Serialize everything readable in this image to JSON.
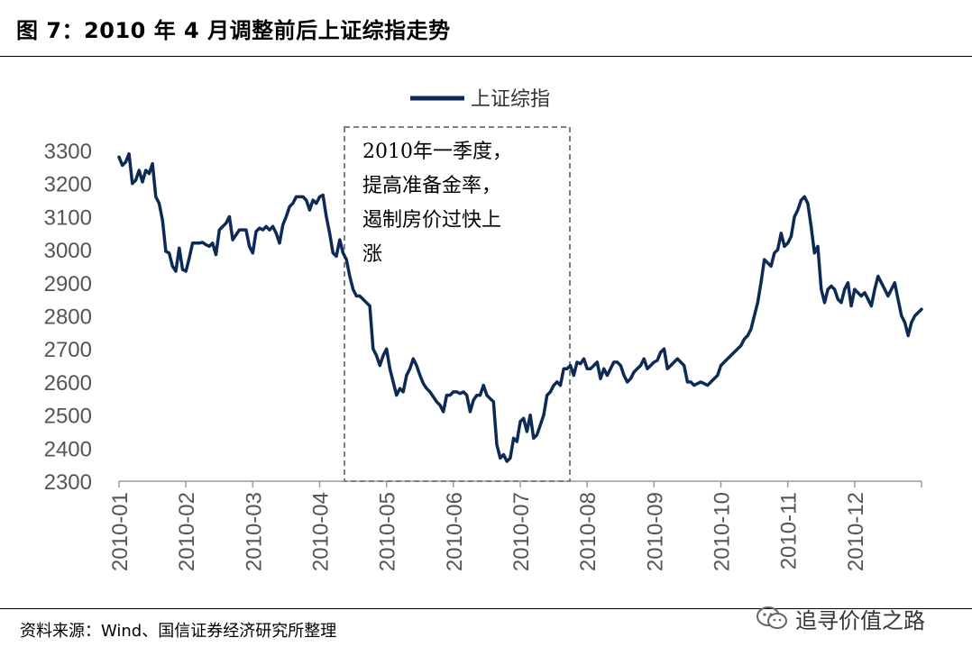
{
  "header": {
    "title": "图 7：2010 年 4 月调整前后上证综指走势"
  },
  "footer": {
    "source": "资料来源：Wind、国信证券经济研究所整理"
  },
  "watermark": {
    "text": "追寻价值之路",
    "icon": "wechat-icon"
  },
  "colors": {
    "line": "#0d2a56",
    "axis": "#9a9a9a",
    "box": "#7f7f7f"
  },
  "chart_data": {
    "type": "line",
    "title": "",
    "xlabel": "",
    "ylabel": "",
    "ylim": [
      2300,
      3300
    ],
    "yticks": [
      "3300",
      "3200",
      "3100",
      "3000",
      "2900",
      "2800",
      "2700",
      "2600",
      "2500",
      "2400",
      "2300"
    ],
    "xticks": [
      "2010-01",
      "2010-02",
      "2010-03",
      "2010-04",
      "2010-05",
      "2010-06",
      "2010-07",
      "2010-08",
      "2010-09",
      "2010-10",
      "2010-11",
      "2010-12"
    ],
    "legend": {
      "position": "top-center",
      "entries": [
        "上证综指"
      ]
    },
    "grid": false,
    "series": [
      {
        "name": "上证综指",
        "x": [
          0.0,
          0.05,
          0.1,
          0.15,
          0.2,
          0.25,
          0.3,
          0.35,
          0.4,
          0.45,
          0.5,
          0.55,
          0.6,
          0.65,
          0.7,
          0.75,
          0.8,
          0.85,
          0.9,
          0.95,
          1.0,
          1.05,
          1.1,
          1.15,
          1.2,
          1.25,
          1.3,
          1.35,
          1.4,
          1.45,
          1.5,
          1.55,
          1.6,
          1.65,
          1.7,
          1.75,
          1.8,
          1.85,
          1.9,
          1.95,
          2.0,
          2.05,
          2.1,
          2.15,
          2.2,
          2.25,
          2.3,
          2.35,
          2.4,
          2.45,
          2.5,
          2.55,
          2.6,
          2.65,
          2.7,
          2.75,
          2.8,
          2.85,
          2.9,
          2.95,
          3.0,
          3.05,
          3.1,
          3.15,
          3.2,
          3.25,
          3.3,
          3.35,
          3.4,
          3.45,
          3.5,
          3.55,
          3.6,
          3.65,
          3.7,
          3.75,
          3.8,
          3.85,
          3.9,
          3.95,
          4.0,
          4.05,
          4.1,
          4.15,
          4.2,
          4.25,
          4.3,
          4.35,
          4.4,
          4.45,
          4.5,
          4.55,
          4.6,
          4.65,
          4.7,
          4.75,
          4.8,
          4.85,
          4.9,
          4.95,
          5.0,
          5.05,
          5.1,
          5.15,
          5.2,
          5.25,
          5.3,
          5.35,
          5.4,
          5.45,
          5.5,
          5.55,
          5.6,
          5.65,
          5.7,
          5.75,
          5.8,
          5.85,
          5.9,
          5.95,
          6.0,
          6.05,
          6.1,
          6.15,
          6.2,
          6.25,
          6.3,
          6.35,
          6.4,
          6.45,
          6.5,
          6.55,
          6.6,
          6.65,
          6.7,
          6.75,
          6.8,
          6.85,
          6.9,
          6.95,
          7.0,
          7.05,
          7.1,
          7.15,
          7.2,
          7.25,
          7.3,
          7.35,
          7.4,
          7.45,
          7.5,
          7.55,
          7.6,
          7.65,
          7.7,
          7.75,
          7.8,
          7.85,
          7.9,
          7.95,
          8.0,
          8.05,
          8.1,
          8.15,
          8.2,
          8.25,
          8.3,
          8.35,
          8.4,
          8.45,
          8.5,
          8.55,
          8.6,
          8.65,
          8.7,
          8.75,
          8.8,
          8.85,
          8.9,
          8.95,
          9.0,
          9.05,
          9.1,
          9.15,
          9.2,
          9.25,
          9.3,
          9.35,
          9.4,
          9.45,
          9.5,
          9.55,
          9.6,
          9.65,
          9.7,
          9.75,
          9.8,
          9.85,
          9.9,
          9.95,
          10.0,
          10.05,
          10.1,
          10.15,
          10.2,
          10.25,
          10.3,
          10.35,
          10.4,
          10.45,
          10.5,
          10.55,
          10.6,
          10.65,
          10.7,
          10.75,
          10.8,
          10.85,
          10.9,
          10.95,
          11.0,
          11.05,
          11.1,
          11.15,
          11.2,
          11.25,
          11.3,
          11.35,
          11.4,
          11.45,
          11.5,
          11.55,
          11.6,
          11.65,
          11.7,
          11.75,
          11.8,
          11.85,
          11.9,
          11.95,
          12.0
        ],
        "values": [
          3280,
          3255,
          3265,
          3290,
          3200,
          3210,
          3240,
          3205,
          3240,
          3230,
          3260,
          3160,
          3140,
          3090,
          2995,
          2990,
          2950,
          2935,
          3005,
          2940,
          2935,
          2975,
          3020,
          3020,
          3020,
          3022,
          3015,
          3010,
          3020,
          2985,
          3060,
          3070,
          3080,
          3100,
          3030,
          3045,
          3060,
          3060,
          3060,
          3010,
          2990,
          3055,
          3065,
          3060,
          3070,
          3060,
          3070,
          3050,
          3020,
          3075,
          3100,
          3130,
          3140,
          3160,
          3160,
          3160,
          3150,
          3120,
          3150,
          3140,
          3160,
          3165,
          3100,
          3050,
          2990,
          2980,
          3030,
          2990,
          2970,
          2920,
          2880,
          2860,
          2860,
          2850,
          2840,
          2830,
          2700,
          2680,
          2650,
          2680,
          2700,
          2640,
          2600,
          2560,
          2580,
          2570,
          2620,
          2640,
          2670,
          2650,
          2620,
          2595,
          2580,
          2570,
          2555,
          2540,
          2530,
          2510,
          2560,
          2560,
          2570,
          2570,
          2565,
          2570,
          2560,
          2510,
          2545,
          2560,
          2560,
          2590,
          2560,
          2550,
          2540,
          2410,
          2370,
          2380,
          2360,
          2370,
          2430,
          2420,
          2480,
          2490,
          2450,
          2500,
          2430,
          2440,
          2470,
          2500,
          2560,
          2570,
          2590,
          2600,
          2590,
          2640,
          2640,
          2650,
          2620,
          2660,
          2655,
          2670,
          2640,
          2640,
          2650,
          2660,
          2610,
          2640,
          2620,
          2640,
          2660,
          2660,
          2650,
          2620,
          2600,
          2610,
          2630,
          2640,
          2650,
          2670,
          2640,
          2650,
          2660,
          2665,
          2690,
          2700,
          2640,
          2650,
          2660,
          2670,
          2660,
          2650,
          2600,
          2600,
          2590,
          2595,
          2600,
          2595,
          2590,
          2600,
          2610,
          2620,
          2650,
          2660,
          2670,
          2680,
          2690,
          2700,
          2710,
          2730,
          2740,
          2760,
          2800,
          2840,
          2900,
          2970,
          2960,
          2950,
          2990,
          3000,
          3050,
          3010,
          3020,
          3040,
          3100,
          3120,
          3150,
          3160,
          3140,
          3070,
          2990,
          3010,
          2880,
          2840,
          2880,
          2890,
          2880,
          2850,
          2840,
          2880,
          2900,
          2830,
          2880,
          2870,
          2860,
          2870,
          2850,
          2830,
          2880,
          2920,
          2900,
          2880,
          2860,
          2880,
          2900,
          2850,
          2800,
          2780,
          2740,
          2780,
          2800,
          2810,
          2820
        ]
      }
    ],
    "annotation": {
      "lines": [
        "2010年一季度，",
        "提高准备金率，",
        "遏制房价过快上",
        "涨"
      ]
    }
  }
}
